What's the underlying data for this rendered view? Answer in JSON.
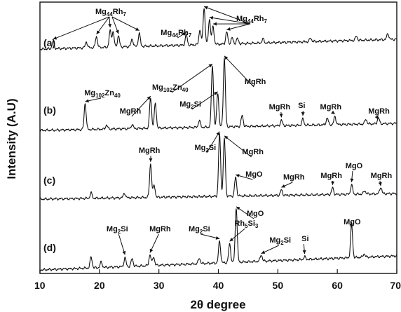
{
  "chart_data": {
    "type": "line",
    "xlabel": "2θ degree",
    "ylabel": "Intensity (A.U)",
    "xlim": [
      10,
      70
    ],
    "xticks": [
      10,
      20,
      30,
      40,
      50,
      60,
      70
    ],
    "xtick_labels": [
      "10",
      "20",
      "30",
      "40",
      "50",
      "60",
      "70"
    ],
    "grid": false,
    "series": [
      {
        "label": "(a)",
        "peaks": [
          {
            "x": 12.2,
            "h": 0.14
          },
          {
            "x": 17.8,
            "h": 0.12
          },
          {
            "x": 19.5,
            "h": 0.22
          },
          {
            "x": 21.8,
            "h": 0.32
          },
          {
            "x": 22.3,
            "h": 0.3
          },
          {
            "x": 23.2,
            "h": 0.22
          },
          {
            "x": 25.5,
            "h": 0.15
          },
          {
            "x": 26.7,
            "h": 0.26
          },
          {
            "x": 34.6,
            "h": 0.2
          },
          {
            "x": 36.9,
            "h": 0.3
          },
          {
            "x": 37.6,
            "h": 0.72
          },
          {
            "x": 38.5,
            "h": 0.5
          },
          {
            "x": 39.1,
            "h": 0.36
          },
          {
            "x": 41.4,
            "h": 0.24
          },
          {
            "x": 42.3,
            "h": 0.12
          },
          {
            "x": 43.2,
            "h": 0.1
          },
          {
            "x": 47.5,
            "h": 0.08
          },
          {
            "x": 55.5,
            "h": 0.07
          },
          {
            "x": 63.2,
            "h": 0.08
          },
          {
            "x": 68.5,
            "h": 0.12
          }
        ]
      },
      {
        "label": "(b)",
        "peaks": [
          {
            "x": 17.6,
            "h": 0.38
          },
          {
            "x": 21.2,
            "h": 0.06
          },
          {
            "x": 25.5,
            "h": 0.06
          },
          {
            "x": 28.6,
            "h": 0.44
          },
          {
            "x": 29.4,
            "h": 0.36
          },
          {
            "x": 36.8,
            "h": 0.1
          },
          {
            "x": 39.0,
            "h": 0.9
          },
          {
            "x": 39.9,
            "h": 0.5
          },
          {
            "x": 41.0,
            "h": 1.0
          },
          {
            "x": 44.0,
            "h": 0.16
          },
          {
            "x": 50.6,
            "h": 0.08
          },
          {
            "x": 54.2,
            "h": 0.09
          },
          {
            "x": 58.3,
            "h": 0.1
          },
          {
            "x": 59.6,
            "h": 0.12
          },
          {
            "x": 64.8,
            "h": 0.07
          },
          {
            "x": 66.9,
            "h": 0.09
          }
        ]
      },
      {
        "label": "(c)",
        "peaks": [
          {
            "x": 18.6,
            "h": 0.08
          },
          {
            "x": 24.2,
            "h": 0.07
          },
          {
            "x": 28.6,
            "h": 0.5
          },
          {
            "x": 29.2,
            "h": 0.18
          },
          {
            "x": 40.2,
            "h": 0.92
          },
          {
            "x": 41.0,
            "h": 0.86
          },
          {
            "x": 42.9,
            "h": 0.28
          },
          {
            "x": 50.6,
            "h": 0.08
          },
          {
            "x": 59.2,
            "h": 0.1
          },
          {
            "x": 62.4,
            "h": 0.14
          },
          {
            "x": 64.6,
            "h": 0.05
          },
          {
            "x": 67.3,
            "h": 0.1
          }
        ]
      },
      {
        "label": "(d)",
        "peaks": [
          {
            "x": 18.6,
            "h": 0.2
          },
          {
            "x": 20.3,
            "h": 0.1
          },
          {
            "x": 24.3,
            "h": 0.16
          },
          {
            "x": 25.5,
            "h": 0.14
          },
          {
            "x": 28.5,
            "h": 0.2
          },
          {
            "x": 29.1,
            "h": 0.16
          },
          {
            "x": 36.8,
            "h": 0.1
          },
          {
            "x": 40.2,
            "h": 0.4
          },
          {
            "x": 41.9,
            "h": 0.34
          },
          {
            "x": 43.0,
            "h": 1.0
          },
          {
            "x": 47.2,
            "h": 0.12
          },
          {
            "x": 54.5,
            "h": 0.05
          },
          {
            "x": 62.4,
            "h": 0.6
          },
          {
            "x": 64.5,
            "h": 0.06
          }
        ]
      }
    ],
    "annotations": [
      {
        "panel": 0,
        "base": "Mg",
        "sub1": "44",
        "mid": "Rh",
        "sub2": "7",
        "x": 21.9,
        "targets": [
          12.2,
          19.5,
          21.8,
          23.2,
          26.7
        ]
      },
      {
        "panel": 0,
        "base": "Mg",
        "sub1": "44",
        "mid": "Rh",
        "sub2": "7",
        "x": 32.9,
        "targets": [
          34.6
        ]
      },
      {
        "panel": 0,
        "base": "Mg",
        "sub1": "44",
        "mid": "Rh",
        "sub2": "7",
        "x": 45.6,
        "targets": [
          37.6,
          38.5,
          39.1,
          41.4
        ]
      },
      {
        "panel": 1,
        "base": "Mg",
        "sub1": "102",
        "mid": "Zn",
        "sub2": "40",
        "x": 20.5,
        "targets": [
          17.6
        ]
      },
      {
        "panel": 1,
        "text": "MgRh",
        "x": 25.2,
        "targets": [
          28.6
        ]
      },
      {
        "panel": 1,
        "base": "Mg",
        "sub1": "102",
        "mid": "Zn",
        "sub2": "40",
        "x": 31.9,
        "targets": [
          39.0
        ]
      },
      {
        "panel": 1,
        "base": "Mg",
        "sub1": "2",
        "mid": "Si",
        "x": 35.3,
        "targets": [
          39.9
        ]
      },
      {
        "panel": 1,
        "text": "MgRh",
        "x": 46.2,
        "targets": [
          41.0
        ]
      },
      {
        "panel": 1,
        "text": "MgRh",
        "x": 50.3,
        "targets": [
          50.6
        ]
      },
      {
        "panel": 1,
        "text": "Si",
        "x": 54.0,
        "targets": [
          54.2
        ]
      },
      {
        "panel": 1,
        "text": "MgRh",
        "x": 58.9,
        "targets": [
          59.6
        ]
      },
      {
        "panel": 1,
        "text": "MgRh",
        "x": 67.0,
        "targets": [
          66.9
        ]
      },
      {
        "panel": 2,
        "text": "MgRh",
        "x": 28.4,
        "targets": [
          28.6
        ]
      },
      {
        "panel": 2,
        "base": "Mg",
        "sub1": "2",
        "mid": "Si",
        "x": 37.8,
        "targets": [
          40.2
        ]
      },
      {
        "panel": 2,
        "text": "MgRh",
        "x": 45.8,
        "targets": [
          41.0
        ]
      },
      {
        "panel": 2,
        "text": "MgO",
        "x": 46.0,
        "targets": [
          42.9
        ]
      },
      {
        "panel": 2,
        "text": "MgRh",
        "x": 52.7,
        "targets": [
          50.6
        ]
      },
      {
        "panel": 2,
        "text": "MgRh",
        "x": 59.0,
        "targets": [
          59.2
        ]
      },
      {
        "panel": 2,
        "text": "MgO",
        "x": 62.8,
        "targets": [
          62.4
        ]
      },
      {
        "panel": 2,
        "text": "MgRh",
        "x": 67.4,
        "targets": [
          67.3
        ]
      },
      {
        "panel": 3,
        "base": "Mg",
        "sub1": "2",
        "mid": "Si",
        "x": 23.0,
        "targets": [
          24.3
        ]
      },
      {
        "panel": 3,
        "text": "MgRh",
        "x": 30.2,
        "targets": [
          28.5
        ]
      },
      {
        "panel": 3,
        "base": "Mg",
        "sub1": "2",
        "mid": "Si",
        "x": 36.8,
        "targets": [
          40.2
        ]
      },
      {
        "panel": 3,
        "text": "MgO",
        "x": 46.2,
        "targets": [
          43.0
        ]
      },
      {
        "panel": 3,
        "base": "Rh",
        "sub1": "5",
        "mid": "Si",
        "sub2": "3",
        "x": 44.7,
        "targets": [
          41.9
        ]
      },
      {
        "panel": 3,
        "base": "Mg",
        "sub1": "2",
        "mid": "Si",
        "x": 50.4,
        "targets": [
          47.2
        ]
      },
      {
        "panel": 3,
        "text": "Si",
        "x": 54.6,
        "targets": [
          54.5
        ]
      },
      {
        "panel": 3,
        "text": "MgO",
        "x": 62.5,
        "targets": [
          62.4
        ]
      }
    ]
  }
}
